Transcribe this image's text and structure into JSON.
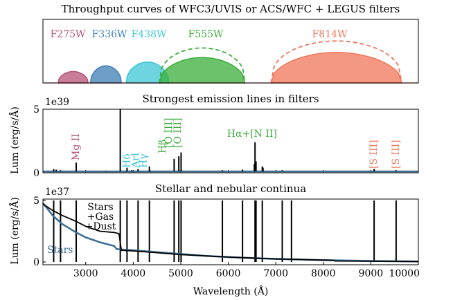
{
  "chart_data": [
    {
      "type": "area",
      "title": "Throughput curves of WFC3/UVIS or ACS/WFC + LEGUS filters",
      "xlim": [
        2100,
        10000
      ],
      "ylim": [
        0,
        1
      ],
      "filters": [
        {
          "name": "F275W",
          "color": "#b5527a",
          "lo": 2420,
          "hi": 3050,
          "peak": 0.18,
          "dashed": false
        },
        {
          "name": "F336W",
          "color": "#3d7fb5",
          "lo": 3100,
          "hi": 3750,
          "peak": 0.27,
          "dashed": false
        },
        {
          "name": "F438W",
          "color": "#3cc6d6",
          "lo": 3850,
          "hi": 4750,
          "peak": 0.33,
          "dashed": false
        },
        {
          "name": "F555W",
          "color": "#3aad3a",
          "lo": 4550,
          "hi": 6350,
          "peak": 0.4,
          "dashed": true,
          "dash_peak": 0.55
        },
        {
          "name": "F814W",
          "color": "#f0765a",
          "lo": 6900,
          "hi": 9650,
          "peak": 0.48,
          "dashed": true,
          "dash_peak": 0.66
        }
      ]
    },
    {
      "type": "line",
      "title": "Strongest emission lines in filters",
      "ylabel": "Lum (erg/s/Å)",
      "exponent": "1e39",
      "xlim": [
        2100,
        10000
      ],
      "ylim": [
        0,
        5
      ],
      "yticks": [
        0,
        5
      ],
      "lines": [
        {
          "x": 2326,
          "y": 0.3
        },
        {
          "x": 2380,
          "y": 0.25
        },
        {
          "x": 2470,
          "y": 0.2
        },
        {
          "x": 2800,
          "y": 0.8
        },
        {
          "x": 3426,
          "y": 0.15
        },
        {
          "x": 3727,
          "y": 5.0
        },
        {
          "x": 3869,
          "y": 0.4
        },
        {
          "x": 3968,
          "y": 0.2
        },
        {
          "x": 4102,
          "y": 0.3
        },
        {
          "x": 4340,
          "y": 0.5
        },
        {
          "x": 4363,
          "y": 0.15
        },
        {
          "x": 4686,
          "y": 0.1
        },
        {
          "x": 4861,
          "y": 1.1
        },
        {
          "x": 4959,
          "y": 1.3
        },
        {
          "x": 5007,
          "y": 1.6
        },
        {
          "x": 5876,
          "y": 0.2
        },
        {
          "x": 6300,
          "y": 0.25
        },
        {
          "x": 6548,
          "y": 0.7
        },
        {
          "x": 6563,
          "y": 2.4
        },
        {
          "x": 6584,
          "y": 0.9
        },
        {
          "x": 6716,
          "y": 0.5
        },
        {
          "x": 6731,
          "y": 0.4
        },
        {
          "x": 7136,
          "y": 0.2
        },
        {
          "x": 9069,
          "y": 0.3
        },
        {
          "x": 9532,
          "y": 0.2
        }
      ],
      "annotations": [
        {
          "text": "Mg II",
          "x": 2800,
          "color": "#b5527a"
        },
        {
          "text": "Hδ",
          "x": 3870,
          "color": "#3cc6d6"
        },
        {
          "text": "ArI",
          "x": 4050,
          "color": "#3cc6d6"
        },
        {
          "text": "Hγ",
          "x": 4220,
          "color": "#3cc6d6"
        },
        {
          "text": "Hβ",
          "x": 4620,
          "color": "#3aad3a"
        },
        {
          "text": "[O III]",
          "x": 4750,
          "color": "#3aad3a"
        },
        {
          "text": "[O III]",
          "x": 4940,
          "color": "#3aad3a"
        },
        {
          "text": "Hα+[N II]",
          "x": 6500,
          "color": "#3aad3a"
        },
        {
          "text": "[S III]",
          "x": 9069,
          "color": "#f0765a"
        },
        {
          "text": "[S III]",
          "x": 9532,
          "color": "#f0765a"
        }
      ]
    },
    {
      "type": "line",
      "title": "Stellar and nebular continua",
      "xlabel": "Wavelength (Å)",
      "ylabel": "Lum (erg/s/Å)",
      "exponent": "1e37",
      "xlim": [
        2100,
        10000
      ],
      "ylim": [
        0,
        5
      ],
      "xticks": [
        3000,
        4000,
        5000,
        6000,
        7000,
        8000,
        9000,
        10000
      ],
      "yticks": [
        0,
        5
      ],
      "series": [
        {
          "name": "Stars",
          "color": "#3d6f96",
          "x": [
            2100,
            2300,
            2500,
            2800,
            3000,
            3300,
            3600,
            3650,
            3800,
            4000,
            4500,
            5000,
            5500,
            6000,
            6500,
            7000,
            7500,
            8000,
            9000,
            10000
          ],
          "y": [
            4.8,
            3.8,
            3.1,
            2.4,
            2.0,
            1.6,
            1.3,
            1.05,
            1.0,
            0.95,
            0.8,
            0.65,
            0.5,
            0.4,
            0.32,
            0.25,
            0.2,
            0.15,
            0.08,
            0.04
          ]
        },
        {
          "name": "Stars +Gas +Dust",
          "color": "#000000",
          "x": [
            2100,
            2300,
            2500,
            2800,
            3000,
            3300,
            3600,
            3700,
            3750,
            4000,
            4500,
            5000,
            5500,
            6000,
            6500,
            7000,
            7500,
            8000,
            8200,
            8250,
            9000,
            10000
          ],
          "y": [
            4.7,
            4.2,
            3.8,
            3.3,
            2.9,
            2.5,
            2.4,
            2.3,
            0.95,
            0.9,
            0.75,
            0.6,
            0.5,
            0.4,
            0.32,
            0.25,
            0.2,
            0.15,
            0.14,
            0.08,
            0.06,
            0.04
          ]
        }
      ],
      "lines": [
        2326,
        2470,
        2800,
        3727,
        3869,
        4102,
        4340,
        4861,
        4959,
        5007,
        5876,
        6300,
        6563,
        6584,
        6716,
        7136,
        7330,
        9069,
        9532
      ]
    }
  ]
}
